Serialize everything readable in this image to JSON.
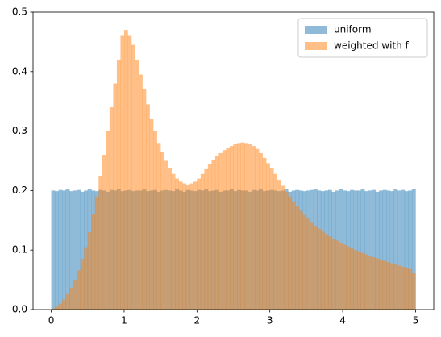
{
  "chart_data": {
    "type": "histogram",
    "bins": [
      0,
      0.05,
      0.1,
      0.15,
      0.2,
      0.25,
      0.3,
      0.35,
      0.4,
      0.45,
      0.5,
      0.55,
      0.6,
      0.65,
      0.7,
      0.75,
      0.8,
      0.85,
      0.9,
      0.95,
      1,
      1.05,
      1.1,
      1.15,
      1.2,
      1.25,
      1.3,
      1.35,
      1.4,
      1.45,
      1.5,
      1.55,
      1.6,
      1.65,
      1.7,
      1.75,
      1.8,
      1.85,
      1.9,
      1.95,
      2,
      2.05,
      2.1,
      2.15,
      2.2,
      2.25,
      2.3,
      2.35,
      2.4,
      2.45,
      2.5,
      2.55,
      2.6,
      2.65,
      2.7,
      2.75,
      2.8,
      2.85,
      2.9,
      2.95,
      3,
      3.05,
      3.1,
      3.15,
      3.2,
      3.25,
      3.3,
      3.35,
      3.4,
      3.45,
      3.5,
      3.55,
      3.6,
      3.65,
      3.7,
      3.75,
      3.8,
      3.85,
      3.9,
      3.95,
      4,
      4.05,
      4.1,
      4.15,
      4.2,
      4.25,
      4.3,
      4.35,
      4.4,
      4.45,
      4.5,
      4.55,
      4.6,
      4.65,
      4.7,
      4.75,
      4.8,
      4.85,
      4.9,
      4.95,
      5
    ],
    "series": [
      {
        "name": "uniform",
        "color": "#1f77b4",
        "values": [
          0.2,
          0.199,
          0.201,
          0.2,
          0.202,
          0.199,
          0.2,
          0.201,
          0.198,
          0.2,
          0.202,
          0.2,
          0.199,
          0.201,
          0.2,
          0.198,
          0.201,
          0.2,
          0.202,
          0.199,
          0.2,
          0.201,
          0.199,
          0.2,
          0.2,
          0.202,
          0.199,
          0.2,
          0.201,
          0.198,
          0.2,
          0.201,
          0.2,
          0.199,
          0.202,
          0.2,
          0.198,
          0.201,
          0.2,
          0.199,
          0.201,
          0.2,
          0.202,
          0.199,
          0.2,
          0.201,
          0.198,
          0.2,
          0.2,
          0.202,
          0.199,
          0.201,
          0.2,
          0.2,
          0.198,
          0.201,
          0.2,
          0.202,
          0.199,
          0.2,
          0.201,
          0.2,
          0.199,
          0.2,
          0.202,
          0.198,
          0.2,
          0.201,
          0.2,
          0.199,
          0.2,
          0.201,
          0.202,
          0.2,
          0.199,
          0.2,
          0.201,
          0.198,
          0.2,
          0.202,
          0.2,
          0.199,
          0.201,
          0.2,
          0.2,
          0.202,
          0.199,
          0.2,
          0.201,
          0.198,
          0.2,
          0.201,
          0.2,
          0.199,
          0.202,
          0.2,
          0.201,
          0.199,
          0.2,
          0.202
        ]
      },
      {
        "name": "weighted with f",
        "color": "#ff7f0e",
        "values": [
          0.002,
          0.005,
          0.01,
          0.017,
          0.026,
          0.037,
          0.05,
          0.066,
          0.085,
          0.105,
          0.13,
          0.16,
          0.19,
          0.225,
          0.26,
          0.3,
          0.34,
          0.38,
          0.42,
          0.46,
          0.47,
          0.46,
          0.445,
          0.42,
          0.395,
          0.37,
          0.345,
          0.32,
          0.3,
          0.28,
          0.265,
          0.25,
          0.238,
          0.228,
          0.22,
          0.215,
          0.212,
          0.21,
          0.212,
          0.215,
          0.22,
          0.228,
          0.236,
          0.245,
          0.252,
          0.258,
          0.263,
          0.268,
          0.272,
          0.275,
          0.278,
          0.28,
          0.281,
          0.28,
          0.278,
          0.275,
          0.27,
          0.263,
          0.255,
          0.246,
          0.237,
          0.228,
          0.218,
          0.208,
          0.198,
          0.19,
          0.182,
          0.174,
          0.166,
          0.159,
          0.153,
          0.147,
          0.141,
          0.136,
          0.131,
          0.127,
          0.123,
          0.119,
          0.116,
          0.112,
          0.109,
          0.106,
          0.103,
          0.1,
          0.098,
          0.095,
          0.093,
          0.09,
          0.088,
          0.086,
          0.084,
          0.082,
          0.08,
          0.078,
          0.076,
          0.074,
          0.072,
          0.07,
          0.068,
          0.062
        ]
      }
    ],
    "alpha": 0.5,
    "xlim": [
      -0.25,
      5.25
    ],
    "ylim": [
      0,
      0.5
    ],
    "xticks": [
      0,
      1,
      2,
      3,
      4,
      5
    ],
    "yticks": [
      {
        "value": 0,
        "label": "0.0"
      },
      0.1,
      0.2,
      0.3,
      0.4,
      0.5
    ],
    "legend": "upper right",
    "grid": false
  }
}
